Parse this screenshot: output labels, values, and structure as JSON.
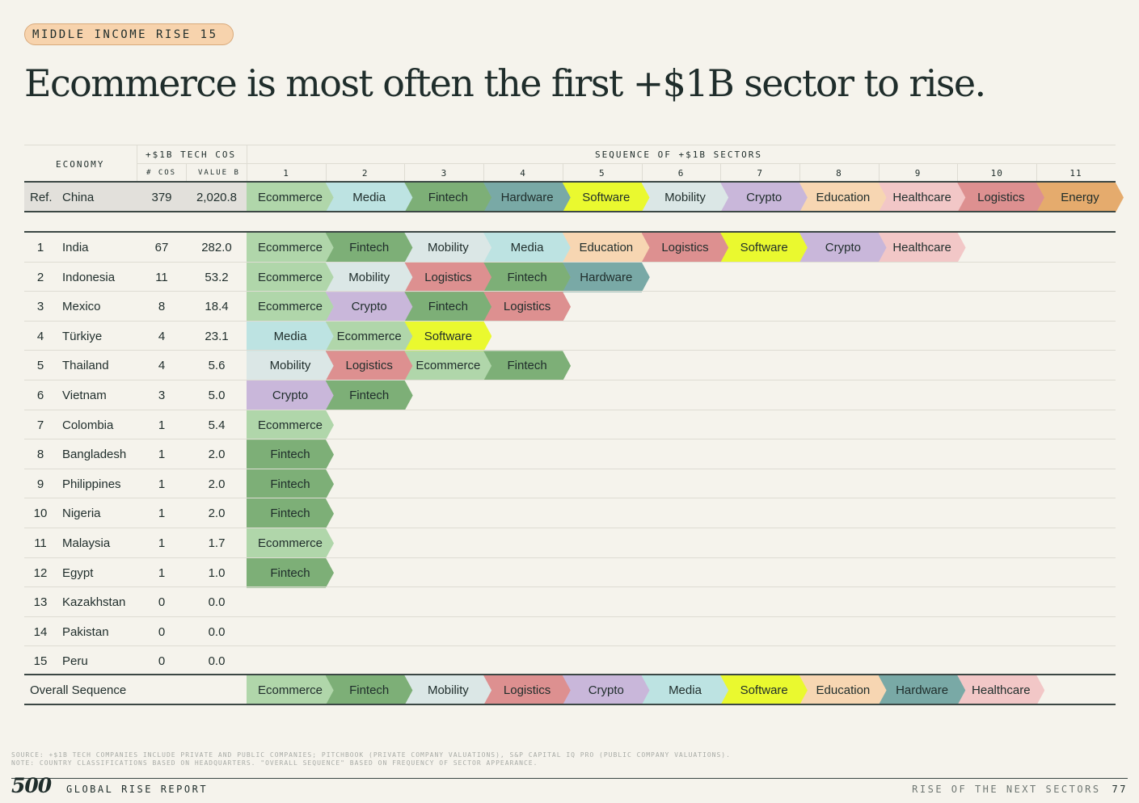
{
  "tag": "MIDDLE INCOME RISE 15",
  "headline": "Ecommerce is most often the first +$1B sector to rise.",
  "header": {
    "economy": "ECONOMY",
    "tech_cos": "+$1B TECH COS",
    "num_cos": "# COS",
    "value_b": "VALUE B",
    "sequence": "SEQUENCE OF +$1B SECTORS",
    "positions": [
      "1",
      "2",
      "3",
      "4",
      "5",
      "6",
      "7",
      "8",
      "9",
      "10",
      "11"
    ]
  },
  "colors": {
    "Ecommerce": "#b0d6aa",
    "Media": "#bde3e2",
    "Fintech": "#7daf77",
    "Hardware": "#79a9a6",
    "Software": "#eaf92f",
    "Mobility": "#dbe7e6",
    "Crypto": "#c9b7da",
    "Education": "#f7d6b2",
    "Healthcare": "#f2c7c7",
    "Logistics": "#dd9090",
    "Energy": "#e5ab6d"
  },
  "reference": {
    "rank": "Ref.",
    "name": "China",
    "cos": "379",
    "value": "2,020.8",
    "sectors": [
      "Ecommerce",
      "Media",
      "Fintech",
      "Hardware",
      "Software",
      "Mobility",
      "Crypto",
      "Education",
      "Healthcare",
      "Logistics",
      "Energy"
    ]
  },
  "rows": [
    {
      "rank": "1",
      "name": "India",
      "cos": "67",
      "value": "282.0",
      "sectors": [
        "Ecommerce",
        "Fintech",
        "Mobility",
        "Media",
        "Education",
        "Logistics",
        "Software",
        "Crypto",
        "Healthcare"
      ]
    },
    {
      "rank": "2",
      "name": "Indonesia",
      "cos": "11",
      "value": "53.2",
      "sectors": [
        "Ecommerce",
        "Mobility",
        "Logistics",
        "Fintech",
        "Hardware"
      ]
    },
    {
      "rank": "3",
      "name": "Mexico",
      "cos": "8",
      "value": "18.4",
      "sectors": [
        "Ecommerce",
        "Crypto",
        "Fintech",
        "Logistics"
      ]
    },
    {
      "rank": "4",
      "name": "Türkiye",
      "cos": "4",
      "value": "23.1",
      "sectors": [
        "Media",
        "Ecommerce",
        "Software"
      ]
    },
    {
      "rank": "5",
      "name": "Thailand",
      "cos": "4",
      "value": "5.6",
      "sectors": [
        "Mobility",
        "Logistics",
        "Ecommerce",
        "Fintech"
      ]
    },
    {
      "rank": "6",
      "name": "Vietnam",
      "cos": "3",
      "value": "5.0",
      "sectors": [
        "Crypto",
        "Fintech"
      ]
    },
    {
      "rank": "7",
      "name": "Colombia",
      "cos": "1",
      "value": "5.4",
      "sectors": [
        "Ecommerce"
      ]
    },
    {
      "rank": "8",
      "name": "Bangladesh",
      "cos": "1",
      "value": "2.0",
      "sectors": [
        "Fintech"
      ]
    },
    {
      "rank": "9",
      "name": "Philippines",
      "cos": "1",
      "value": "2.0",
      "sectors": [
        "Fintech"
      ]
    },
    {
      "rank": "10",
      "name": "Nigeria",
      "cos": "1",
      "value": "2.0",
      "sectors": [
        "Fintech"
      ]
    },
    {
      "rank": "11",
      "name": "Malaysia",
      "cos": "1",
      "value": "1.7",
      "sectors": [
        "Ecommerce"
      ]
    },
    {
      "rank": "12",
      "name": "Egypt",
      "cos": "1",
      "value": "1.0",
      "sectors": [
        "Fintech"
      ]
    },
    {
      "rank": "13",
      "name": "Kazakhstan",
      "cos": "0",
      "value": "0.0",
      "sectors": []
    },
    {
      "rank": "14",
      "name": "Pakistan",
      "cos": "0",
      "value": "0.0",
      "sectors": []
    },
    {
      "rank": "15",
      "name": "Peru",
      "cos": "0",
      "value": "0.0",
      "sectors": []
    }
  ],
  "overall": {
    "label": "Overall Sequence",
    "sectors": [
      "Ecommerce",
      "Fintech",
      "Mobility",
      "Logistics",
      "Crypto",
      "Media",
      "Software",
      "Education",
      "Hardware",
      "Healthcare"
    ]
  },
  "footnotes": {
    "source": "SOURCE: +$1B TECH COMPANIES INCLUDE PRIVATE AND PUBLIC COMPANIES; PITCHBOOK (PRIVATE COMPANY VALUATIONS), S&P CAPITAL IQ PRO (PUBLIC COMPANY VALUATIONS).",
    "note": "NOTE: COUNTRY CLASSIFICATIONS BASED ON HEADQUARTERS. \"OVERALL SEQUENCE\" BASED ON FREQUENCY OF SECTOR APPEARANCE."
  },
  "footer": {
    "logo": "500",
    "report": "GLOBAL RISE REPORT",
    "section": "RISE OF THE NEXT SECTORS",
    "page": "77"
  }
}
